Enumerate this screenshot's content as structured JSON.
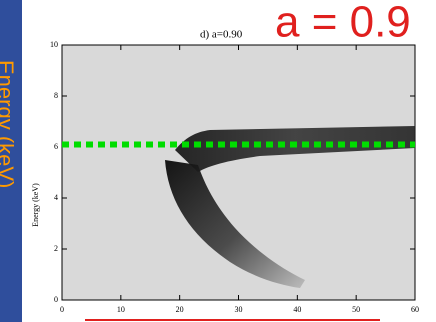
{
  "chart_data": {
    "type": "image",
    "title": "d) a=0.90",
    "annotation": "a = 0.9",
    "y_label": "Energy (keV)",
    "side_label": "Energy (keV)",
    "xlim": [
      0,
      60
    ],
    "xticks": [
      0,
      10,
      20,
      30,
      40,
      50,
      60
    ],
    "ylim": [
      0,
      10
    ],
    "yticks": [
      0,
      2,
      4,
      6,
      8,
      10
    ],
    "reference_line": {
      "value": 6.1,
      "color": "#00dd00"
    }
  }
}
